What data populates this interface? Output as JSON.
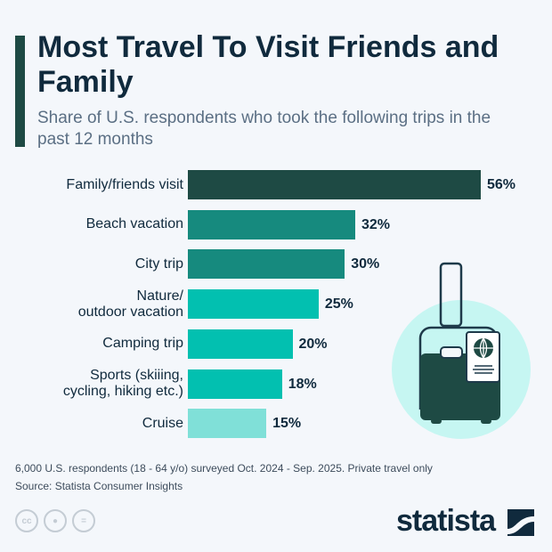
{
  "title": "Most Travel To Visit Friends and Family",
  "subtitle": "Share of U.S. respondents who took the following trips in the past 12 months",
  "chart_data": {
    "type": "bar",
    "orientation": "horizontal",
    "categories": [
      "Family/friends visit",
      "Beach vacation",
      "City trip",
      "Nature/ outdoor vacation",
      "Camping trip",
      "Sports (skiiing, cycling, hiking etc.)",
      "Cruise"
    ],
    "values": [
      56,
      32,
      30,
      25,
      20,
      18,
      15
    ],
    "labels": [
      "56%",
      "32%",
      "30%",
      "25%",
      "20%",
      "18%",
      "15%"
    ],
    "unit": "%",
    "colors": [
      "#1e4a44",
      "#168a7e",
      "#168a7e",
      "#02c0b0",
      "#02c0b0",
      "#02c0b0",
      "#80e0d8"
    ],
    "grid": false
  },
  "footer": {
    "note": "6,000 U.S. respondents (18 - 64 y/o) surveyed Oct. 2024 - Sep. 2025. Private travel only",
    "source": "Source: Statista Consumer Insights",
    "cc_icons": [
      "cc-icon",
      "attribution-icon",
      "no-derivatives-icon"
    ],
    "brand": "statista"
  },
  "illustration": "suitcase-passport-icon"
}
